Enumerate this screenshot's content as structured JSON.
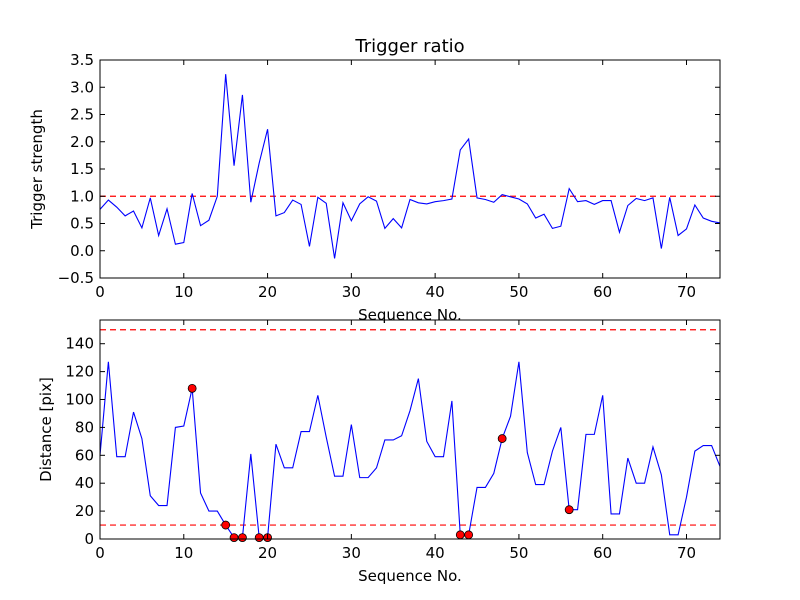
{
  "chart_data": [
    {
      "type": "line",
      "title": "Trigger ratio",
      "xlabel": "Sequence No.",
      "ylabel": "Trigger strength",
      "xlim": [
        0,
        74
      ],
      "ylim": [
        -0.5,
        3.5
      ],
      "xticks": [
        0,
        10,
        20,
        30,
        40,
        50,
        60,
        70
      ],
      "yticks": [
        -0.5,
        0.0,
        0.5,
        1.0,
        1.5,
        2.0,
        2.5,
        3.0,
        3.5
      ],
      "ytick_labels": [
        "−0.5",
        "0.0",
        "0.5",
        "1.0",
        "1.5",
        "2.0",
        "2.5",
        "3.0",
        "3.5"
      ],
      "series_color": "#0000ff",
      "reference_lines": [
        {
          "y": 1.0,
          "color": "#ff0000",
          "style": "dashed"
        }
      ],
      "series": [
        {
          "x": [
            0,
            1,
            2,
            3,
            4,
            5,
            6,
            7,
            8,
            9,
            10,
            11,
            12,
            13,
            14,
            15,
            16,
            17,
            18,
            19,
            20,
            21,
            22,
            23,
            24,
            25,
            26,
            27,
            28,
            29,
            30,
            31,
            32,
            33,
            34,
            35,
            36,
            37,
            38,
            39,
            40,
            41,
            42,
            43,
            44,
            45,
            46,
            47,
            48,
            49,
            50,
            51,
            52,
            53,
            54,
            55,
            56,
            57,
            58,
            59,
            60,
            61,
            62,
            63,
            64,
            65,
            66,
            67,
            68,
            69,
            70,
            71,
            72,
            73,
            74
          ],
          "y": [
            0.76,
            0.93,
            0.8,
            0.64,
            0.73,
            0.42,
            0.97,
            0.28,
            0.77,
            0.12,
            0.15,
            1.05,
            0.46,
            0.56,
            1.0,
            3.24,
            1.56,
            2.86,
            0.89,
            1.61,
            2.23,
            0.64,
            0.7,
            0.93,
            0.85,
            0.08,
            0.98,
            0.87,
            -0.14,
            0.88,
            0.55,
            0.86,
            0.99,
            0.91,
            0.41,
            0.59,
            0.42,
            0.94,
            0.88,
            0.86,
            0.9,
            0.92,
            0.95,
            1.85,
            2.05,
            0.97,
            0.94,
            0.89,
            1.03,
            0.99,
            0.95,
            0.86,
            0.6,
            0.67,
            0.41,
            0.45,
            1.14,
            0.9,
            0.92,
            0.85,
            0.92,
            0.92,
            0.34,
            0.83,
            0.96,
            0.92,
            0.97,
            0.04,
            0.98,
            0.28,
            0.4,
            0.84,
            0.6,
            0.54,
            0.51
          ]
        }
      ]
    },
    {
      "type": "line",
      "title": "",
      "xlabel": "Sequence No.",
      "ylabel": "Distance [pix]",
      "xlim": [
        0,
        74
      ],
      "ylim": [
        0,
        157
      ],
      "xticks": [
        0,
        10,
        20,
        30,
        40,
        50,
        60,
        70
      ],
      "yticks": [
        0,
        20,
        40,
        60,
        80,
        100,
        120,
        140
      ],
      "series_color": "#0000ff",
      "marker_color": "#ff0000",
      "reference_lines": [
        {
          "y": 150,
          "color": "#ff0000",
          "style": "dashed"
        },
        {
          "y": 10,
          "color": "#ff0000",
          "style": "dashed"
        }
      ],
      "series": [
        {
          "x": [
            0,
            1,
            2,
            3,
            4,
            5,
            6,
            7,
            8,
            9,
            10,
            11,
            12,
            13,
            14,
            15,
            16,
            17,
            18,
            19,
            20,
            21,
            22,
            23,
            24,
            25,
            26,
            27,
            28,
            29,
            30,
            31,
            32,
            33,
            34,
            35,
            36,
            37,
            38,
            39,
            40,
            41,
            42,
            43,
            44,
            45,
            46,
            47,
            48,
            49,
            50,
            51,
            52,
            53,
            54,
            55,
            56,
            57,
            58,
            59,
            60,
            61,
            62,
            63,
            64,
            65,
            66,
            67,
            68,
            69,
            70,
            71,
            72,
            73,
            74
          ],
          "y": [
            60,
            127,
            59,
            59,
            91,
            72,
            31,
            24,
            24,
            80,
            81,
            108,
            33,
            20,
            20,
            10,
            1,
            1,
            61,
            1,
            1,
            68,
            51,
            51,
            77,
            77,
            103,
            73,
            45,
            45,
            82,
            44,
            44,
            51,
            71,
            71,
            74,
            92,
            115,
            70,
            59,
            59,
            99,
            3,
            3,
            37,
            37,
            47,
            72,
            88,
            127,
            62,
            39,
            39,
            63,
            80,
            21,
            21,
            75,
            75,
            103,
            18,
            18,
            58,
            40,
            40,
            66,
            46,
            3,
            3,
            30,
            63,
            67,
            67,
            52
          ]
        }
      ],
      "markers": {
        "x": [
          11,
          15,
          16,
          17,
          19,
          20,
          43,
          44,
          48,
          56
        ],
        "y": [
          108,
          10,
          1,
          1,
          1,
          1,
          3,
          3,
          72,
          21
        ]
      }
    }
  ]
}
